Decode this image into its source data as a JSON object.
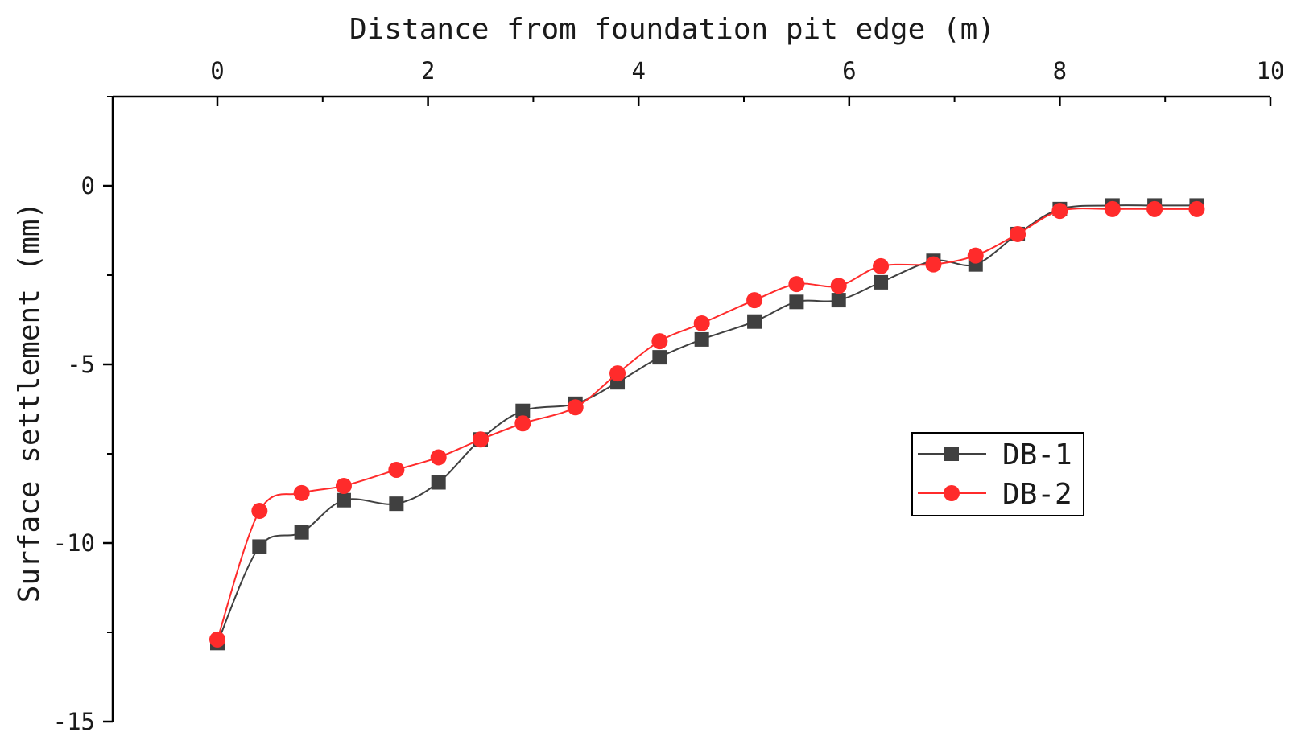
{
  "chart_data": {
    "type": "line",
    "xlabel": "Distance from foundation pit edge (m)",
    "ylabel": "Surface settlement (mm)",
    "xlim": [
      0,
      10
    ],
    "ylim": [
      -15,
      2.5
    ],
    "xticks": [
      "0",
      "2",
      "4",
      "6",
      "8",
      "10"
    ],
    "yticks": [
      "0",
      "-5",
      "-10",
      "-15"
    ],
    "x_axis_position": "top",
    "grid": false,
    "legend_position": "right",
    "series": [
      {
        "name": "DB-1",
        "color": "#404040",
        "marker": "square",
        "points": [
          [
            0,
            -12.8
          ],
          [
            0.4,
            -10.1
          ],
          [
            0.8,
            -9.7
          ],
          [
            1.2,
            -8.8
          ],
          [
            1.7,
            -8.9
          ],
          [
            2.1,
            -8.3
          ],
          [
            2.5,
            -7.1
          ],
          [
            2.9,
            -6.3
          ],
          [
            3.4,
            -6.1
          ],
          [
            3.8,
            -5.5
          ],
          [
            4.2,
            -4.8
          ],
          [
            4.6,
            -4.3
          ],
          [
            5.1,
            -3.8
          ],
          [
            5.5,
            -3.25
          ],
          [
            5.9,
            -3.2
          ],
          [
            6.3,
            -2.7
          ],
          [
            6.8,
            -2.1
          ],
          [
            7.2,
            -2.2
          ],
          [
            7.6,
            -1.35
          ],
          [
            8.0,
            -0.65
          ],
          [
            8.5,
            -0.55
          ],
          [
            8.9,
            -0.55
          ],
          [
            9.3,
            -0.55
          ]
        ]
      },
      {
        "name": "DB-2",
        "color": "#ff2b2b",
        "marker": "circle",
        "points": [
          [
            0,
            -12.7
          ],
          [
            0.4,
            -9.1
          ],
          [
            0.8,
            -8.6
          ],
          [
            1.2,
            -8.4
          ],
          [
            1.7,
            -7.95
          ],
          [
            2.1,
            -7.6
          ],
          [
            2.5,
            -7.1
          ],
          [
            2.9,
            -6.65
          ],
          [
            3.4,
            -6.2
          ],
          [
            3.8,
            -5.25
          ],
          [
            4.2,
            -4.35
          ],
          [
            4.6,
            -3.85
          ],
          [
            5.1,
            -3.2
          ],
          [
            5.5,
            -2.75
          ],
          [
            5.9,
            -2.8
          ],
          [
            6.3,
            -2.25
          ],
          [
            6.8,
            -2.2
          ],
          [
            7.2,
            -1.95
          ],
          [
            7.6,
            -1.35
          ],
          [
            8.0,
            -0.7
          ],
          [
            8.5,
            -0.65
          ],
          [
            8.9,
            -0.65
          ],
          [
            9.3,
            -0.65
          ]
        ]
      }
    ]
  }
}
